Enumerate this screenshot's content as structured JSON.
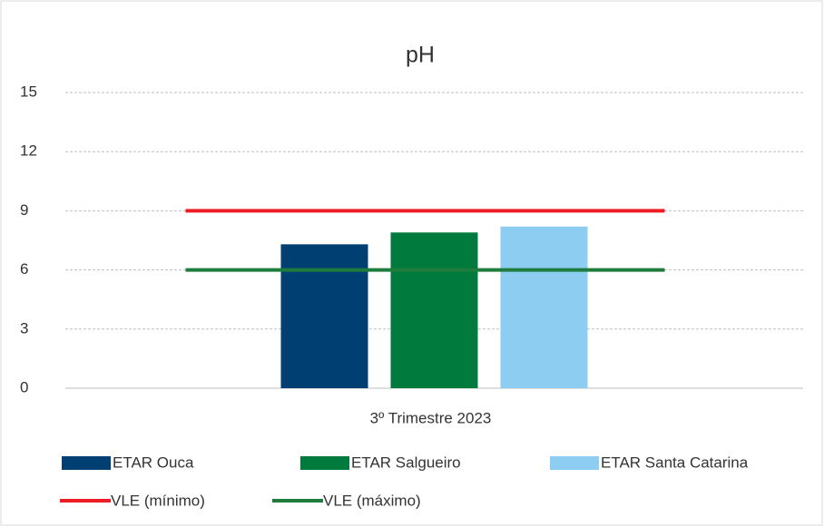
{
  "chart_data": {
    "type": "bar",
    "title": "pH",
    "categories": [
      "3º Trimestre 2023"
    ],
    "series": [
      {
        "name": "ETAR Ouca",
        "color": "#003f72",
        "values": [
          7.3
        ]
      },
      {
        "name": "ETAR Salgueiro",
        "color": "#007a3d",
        "values": [
          7.9
        ]
      },
      {
        "name": "ETAR Santa Catarina",
        "color": "#8ecdf2",
        "values": [
          8.2
        ]
      },
      {
        "name": "VLE (mínimo)",
        "color": "#ee1c25",
        "type": "line",
        "values": [
          9
        ]
      },
      {
        "name": "VLE (máximo)",
        "color": "#1e7d3c",
        "type": "line",
        "values": [
          6
        ]
      }
    ],
    "ylim": [
      0,
      15
    ],
    "yticks": [
      0,
      3,
      6,
      9,
      12,
      15
    ],
    "grid": true,
    "legend": "bottom"
  }
}
